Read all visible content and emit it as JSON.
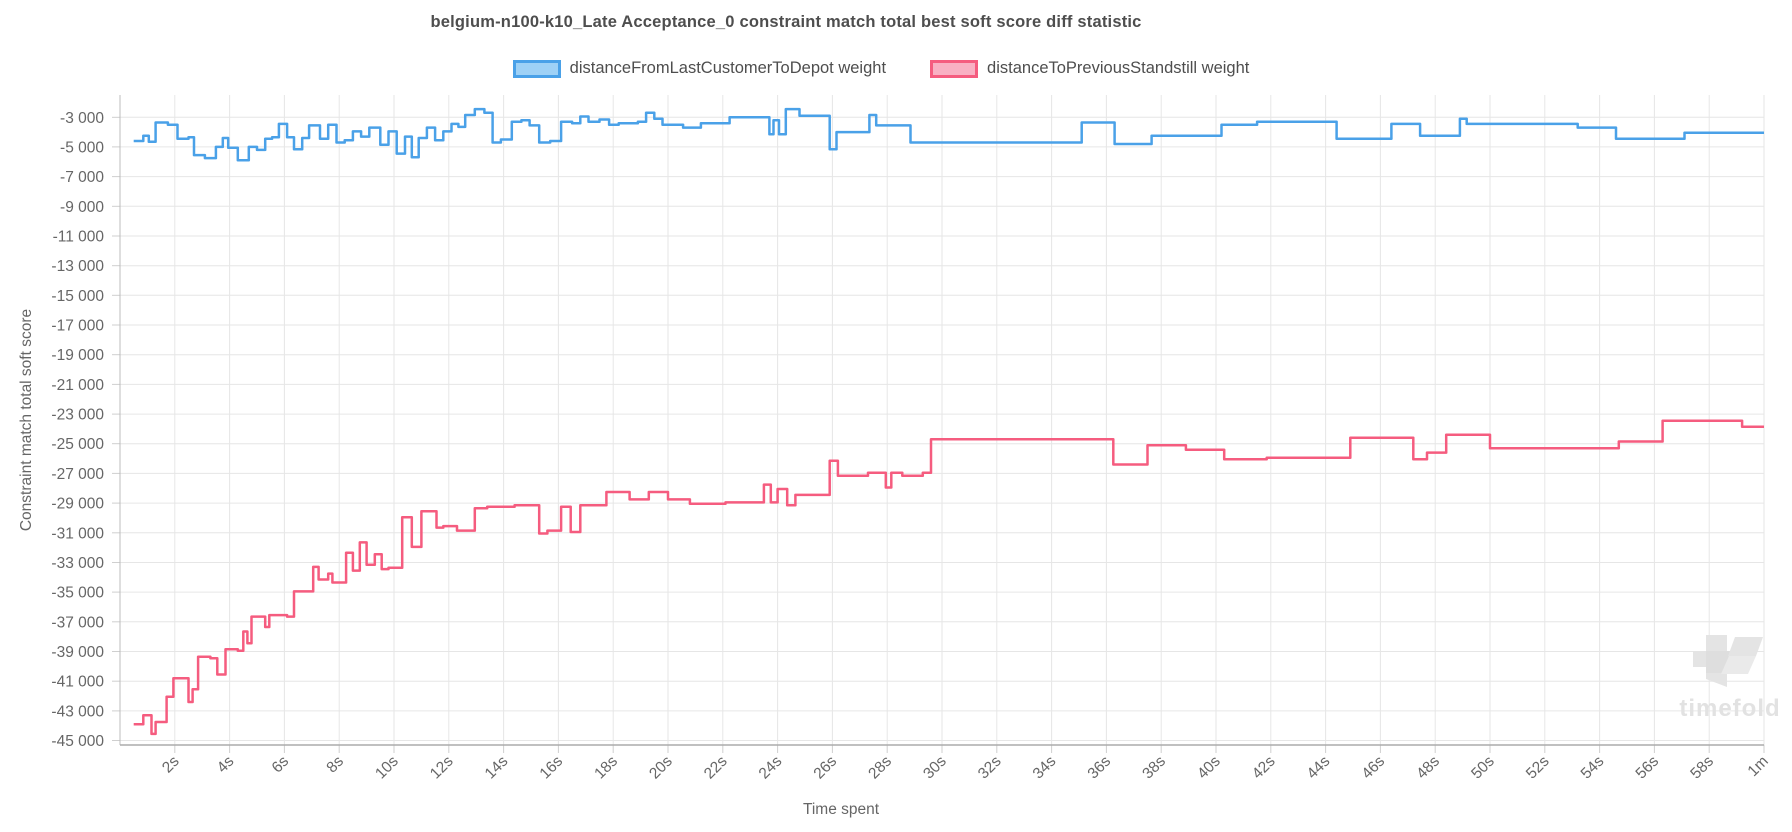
{
  "chart_data": {
    "type": "line",
    "title": "belgium-n100-k10_Late Acceptance_0 constraint match total best soft score diff statistic",
    "xlabel": "Time spent",
    "ylabel": "Constraint match total soft score",
    "watermark": "timefold",
    "xlim": [
      0,
      60
    ],
    "ylim": [
      -45300,
      -1500
    ],
    "grid": "on",
    "legend_position": "top-center",
    "x_tick_values": [
      2,
      4,
      6,
      8,
      10,
      12,
      14,
      16,
      18,
      20,
      22,
      24,
      26,
      28,
      30,
      32,
      34,
      36,
      38,
      40,
      42,
      44,
      46,
      48,
      50,
      52,
      54,
      56,
      58,
      60
    ],
    "x_tick_labels": [
      "2s",
      "4s",
      "6s",
      "8s",
      "10s",
      "12s",
      "14s",
      "16s",
      "18s",
      "20s",
      "22s",
      "24s",
      "26s",
      "28s",
      "30s",
      "32s",
      "34s",
      "36s",
      "38s",
      "40s",
      "42s",
      "44s",
      "46s",
      "48s",
      "50s",
      "52s",
      "54s",
      "56s",
      "58s",
      "1m"
    ],
    "y_tick_values": [
      -3000,
      -5000,
      -7000,
      -9000,
      -11000,
      -13000,
      -15000,
      -17000,
      -19000,
      -21000,
      -23000,
      -25000,
      -27000,
      -29000,
      -31000,
      -33000,
      -35000,
      -37000,
      -39000,
      -41000,
      -43000,
      -45000
    ],
    "y_tick_labels": [
      "-3 000",
      "-5 000",
      "-7 000",
      "-9 000",
      "-11 000",
      "-13 000",
      "-15 000",
      "-17 000",
      "-19 000",
      "-21 000",
      "-23 000",
      "-25 000",
      "-27 000",
      "-29 000",
      "-31 000",
      "-33 000",
      "-35 000",
      "-37 000",
      "-39 000",
      "-41 000",
      "-43 000",
      "-45 000"
    ],
    "series": [
      {
        "name": "distanceFromLastCustomerToDepot weight",
        "line_color": "#4aa1e8",
        "swatch_fill": "#9ed1f6",
        "interpolation": "step-after",
        "points": [
          [
            0.5,
            -4600
          ],
          [
            0.85,
            -4250
          ],
          [
            1.05,
            -4650
          ],
          [
            1.3,
            -3350
          ],
          [
            1.75,
            -3500
          ],
          [
            2.1,
            -4450
          ],
          [
            2.5,
            -4350
          ],
          [
            2.7,
            -5550
          ],
          [
            3.1,
            -5750
          ],
          [
            3.5,
            -5000
          ],
          [
            3.75,
            -4400
          ],
          [
            3.95,
            -5050
          ],
          [
            4.3,
            -5900
          ],
          [
            4.7,
            -5000
          ],
          [
            5.0,
            -5200
          ],
          [
            5.3,
            -4450
          ],
          [
            5.55,
            -4350
          ],
          [
            5.8,
            -3450
          ],
          [
            6.1,
            -4350
          ],
          [
            6.35,
            -5150
          ],
          [
            6.65,
            -4400
          ],
          [
            6.9,
            -3550
          ],
          [
            7.3,
            -4450
          ],
          [
            7.6,
            -3500
          ],
          [
            7.9,
            -4700
          ],
          [
            8.2,
            -4550
          ],
          [
            8.5,
            -3950
          ],
          [
            8.8,
            -4300
          ],
          [
            9.1,
            -3700
          ],
          [
            9.5,
            -4850
          ],
          [
            9.8,
            -3950
          ],
          [
            10.1,
            -5450
          ],
          [
            10.4,
            -4300
          ],
          [
            10.65,
            -5700
          ],
          [
            10.9,
            -4400
          ],
          [
            11.2,
            -3700
          ],
          [
            11.5,
            -4550
          ],
          [
            11.8,
            -3950
          ],
          [
            12.1,
            -3450
          ],
          [
            12.35,
            -3650
          ],
          [
            12.6,
            -2850
          ],
          [
            12.95,
            -2450
          ],
          [
            13.3,
            -2700
          ],
          [
            13.6,
            -4700
          ],
          [
            13.9,
            -4500
          ],
          [
            14.3,
            -3300
          ],
          [
            14.65,
            -3200
          ],
          [
            14.95,
            -3550
          ],
          [
            15.3,
            -4700
          ],
          [
            15.7,
            -4600
          ],
          [
            16.1,
            -3300
          ],
          [
            16.5,
            -3400
          ],
          [
            16.8,
            -2950
          ],
          [
            17.1,
            -3300
          ],
          [
            17.5,
            -3150
          ],
          [
            17.85,
            -3500
          ],
          [
            18.2,
            -3400
          ],
          [
            18.9,
            -3300
          ],
          [
            19.2,
            -2700
          ],
          [
            19.5,
            -3100
          ],
          [
            19.8,
            -3500
          ],
          [
            20.55,
            -3700
          ],
          [
            21.2,
            -3400
          ],
          [
            22.25,
            -3000
          ],
          [
            23.7,
            -4150
          ],
          [
            23.85,
            -3200
          ],
          [
            24.05,
            -4150
          ],
          [
            24.3,
            -2450
          ],
          [
            24.8,
            -2900
          ],
          [
            25.9,
            -5150
          ],
          [
            26.15,
            -4000
          ],
          [
            27.35,
            -2850
          ],
          [
            27.6,
            -3550
          ],
          [
            28.85,
            -4700
          ],
          [
            35.1,
            -3350
          ],
          [
            36.3,
            -4800
          ],
          [
            37.65,
            -4250
          ],
          [
            40.2,
            -3500
          ],
          [
            41.5,
            -3300
          ],
          [
            44.4,
            -4450
          ],
          [
            46.4,
            -3450
          ],
          [
            47.45,
            -4250
          ],
          [
            48.9,
            -3100
          ],
          [
            49.15,
            -3450
          ],
          [
            53.2,
            -3700
          ],
          [
            54.6,
            -4450
          ],
          [
            57.1,
            -4050
          ],
          [
            60,
            -4050
          ]
        ]
      },
      {
        "name": "distanceToPreviousStandstill weight",
        "line_color": "#f55c7f",
        "swatch_fill": "#f9b0c3",
        "interpolation": "step-after",
        "points": [
          [
            0.5,
            -43900
          ],
          [
            0.85,
            -43300
          ],
          [
            1.15,
            -44550
          ],
          [
            1.3,
            -43750
          ],
          [
            1.7,
            -42050
          ],
          [
            1.95,
            -40800
          ],
          [
            2.5,
            -42400
          ],
          [
            2.65,
            -41550
          ],
          [
            2.85,
            -39350
          ],
          [
            3.3,
            -39450
          ],
          [
            3.55,
            -40550
          ],
          [
            3.85,
            -38850
          ],
          [
            4.3,
            -38950
          ],
          [
            4.5,
            -37650
          ],
          [
            4.65,
            -38450
          ],
          [
            4.8,
            -36650
          ],
          [
            5.3,
            -37350
          ],
          [
            5.45,
            -36550
          ],
          [
            6.1,
            -36650
          ],
          [
            6.35,
            -34950
          ],
          [
            7.05,
            -33300
          ],
          [
            7.25,
            -34150
          ],
          [
            7.6,
            -33750
          ],
          [
            7.75,
            -34350
          ],
          [
            8.25,
            -32350
          ],
          [
            8.5,
            -33550
          ],
          [
            8.75,
            -31650
          ],
          [
            9.0,
            -33150
          ],
          [
            9.3,
            -32450
          ],
          [
            9.55,
            -33450
          ],
          [
            9.8,
            -33350
          ],
          [
            10.3,
            -29950
          ],
          [
            10.65,
            -31950
          ],
          [
            11.0,
            -29550
          ],
          [
            11.55,
            -30650
          ],
          [
            11.8,
            -30550
          ],
          [
            12.3,
            -30850
          ],
          [
            12.95,
            -29350
          ],
          [
            13.4,
            -29250
          ],
          [
            14.4,
            -29150
          ],
          [
            15.3,
            -31050
          ],
          [
            15.6,
            -30850
          ],
          [
            16.1,
            -29250
          ],
          [
            16.45,
            -30950
          ],
          [
            16.8,
            -29150
          ],
          [
            17.75,
            -28250
          ],
          [
            18.6,
            -28750
          ],
          [
            19.3,
            -28250
          ],
          [
            20.0,
            -28750
          ],
          [
            20.8,
            -29050
          ],
          [
            22.1,
            -28950
          ],
          [
            23.5,
            -27750
          ],
          [
            23.75,
            -28950
          ],
          [
            24.0,
            -28050
          ],
          [
            24.35,
            -29150
          ],
          [
            24.65,
            -28450
          ],
          [
            25.9,
            -26150
          ],
          [
            26.2,
            -27150
          ],
          [
            27.3,
            -26950
          ],
          [
            27.95,
            -27950
          ],
          [
            28.15,
            -26950
          ],
          [
            28.55,
            -27150
          ],
          [
            29.3,
            -26950
          ],
          [
            29.6,
            -24700
          ],
          [
            36.25,
            -26400
          ],
          [
            37.5,
            -25100
          ],
          [
            38.9,
            -25400
          ],
          [
            40.3,
            -26050
          ],
          [
            41.85,
            -25950
          ],
          [
            44.9,
            -24600
          ],
          [
            47.2,
            -26050
          ],
          [
            47.7,
            -25600
          ],
          [
            48.4,
            -24400
          ],
          [
            50.0,
            -25300
          ],
          [
            54.7,
            -24850
          ],
          [
            56.3,
            -23450
          ],
          [
            59.2,
            -23850
          ],
          [
            60,
            -23850
          ]
        ]
      }
    ],
    "colors": {
      "grid": "#e6e6e6",
      "axis_border": "#bcbcbc",
      "tick_text": "#666666",
      "title_text": "#4e4e4e",
      "watermark": "#e4e4e4"
    }
  }
}
